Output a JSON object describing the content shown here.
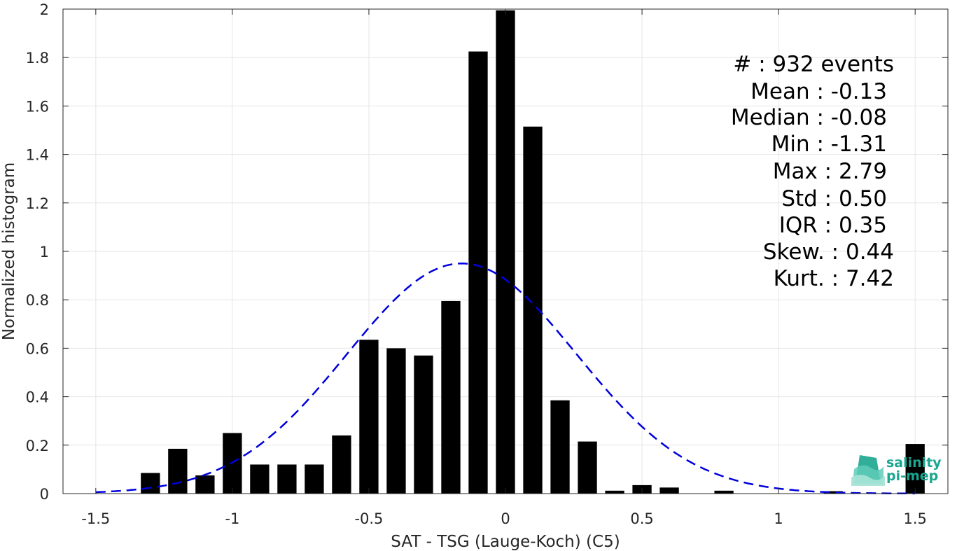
{
  "chart_data": {
    "type": "bar",
    "xlabel": "SAT - TSG (Lauge-Koch) (C5)",
    "ylabel": "Normalized histogram",
    "xlim": [
      -1.62,
      1.62
    ],
    "ylim": [
      0,
      2
    ],
    "xticks": [
      -1.5,
      -1,
      -0.5,
      0,
      0.5,
      1,
      1.5
    ],
    "xtick_labels": [
      "-1.5",
      "-1",
      "-0.5",
      "0",
      "0.5",
      "1",
      "1.5"
    ],
    "yticks": [
      0,
      0.2,
      0.4,
      0.6,
      0.8,
      1,
      1.2,
      1.4,
      1.6,
      1.8,
      2
    ],
    "ytick_labels": [
      "0",
      "0.2",
      "0.4",
      "0.6",
      "0.8",
      "1",
      "1.2",
      "1.4",
      "1.6",
      "1.8",
      "2"
    ],
    "grid": true,
    "bin_width": 0.1,
    "bar_width": 0.07,
    "bar_color": "#000000",
    "bars": [
      {
        "x": -1.3,
        "y": 0.085
      },
      {
        "x": -1.2,
        "y": 0.185
      },
      {
        "x": -1.1,
        "y": 0.075
      },
      {
        "x": -1.0,
        "y": 0.25
      },
      {
        "x": -0.9,
        "y": 0.12
      },
      {
        "x": -0.8,
        "y": 0.12
      },
      {
        "x": -0.7,
        "y": 0.12
      },
      {
        "x": -0.6,
        "y": 0.24
      },
      {
        "x": -0.5,
        "y": 0.635
      },
      {
        "x": -0.4,
        "y": 0.6
      },
      {
        "x": -0.3,
        "y": 0.57
      },
      {
        "x": -0.2,
        "y": 0.795
      },
      {
        "x": -0.1,
        "y": 1.825
      },
      {
        "x": 0.0,
        "y": 1.995
      },
      {
        "x": 0.1,
        "y": 1.515
      },
      {
        "x": 0.2,
        "y": 0.385
      },
      {
        "x": 0.3,
        "y": 0.215
      },
      {
        "x": 0.4,
        "y": 0.012
      },
      {
        "x": 0.5,
        "y": 0.035
      },
      {
        "x": 0.6,
        "y": 0.025
      },
      {
        "x": 0.8,
        "y": 0.012
      },
      {
        "x": 1.2,
        "y": 0.01
      },
      {
        "x": 1.5,
        "y": 0.205
      }
    ],
    "fit": {
      "type": "gaussian",
      "mean": -0.16,
      "std": 0.42,
      "peak": 0.95,
      "x_range": [
        -1.5,
        1.5
      ],
      "color": "#0000dd",
      "style": "dashed"
    }
  },
  "stats": {
    "events": "#  : 932 events",
    "mean": "Mean : -0.13",
    "median": "Median : -0.08",
    "min": "Min : -1.31",
    "max": "Max : 2.79",
    "std": "Std : 0.50",
    "iqr": "IQR : 0.35",
    "skew": "Skew. : 0.44",
    "kurt": "Kurt. : 7.42"
  },
  "logo": {
    "line1": "salinity",
    "line2": "pi-mep",
    "color": "#1aa58f"
  }
}
